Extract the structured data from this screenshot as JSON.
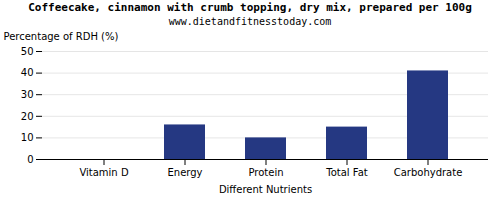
{
  "chart_data": {
    "type": "bar",
    "title": "Coffeecake, cinnamon with crumb topping, dry mix, prepared per 100g",
    "subtitle": "www.dietandfitnesstoday.com",
    "categories": [
      "Vitamin D",
      "Energy",
      "Protein",
      "Total Fat",
      "Carbohydrate"
    ],
    "values": [
      0,
      16,
      10,
      15,
      41
    ],
    "color": "#253882",
    "xlabel": "Different Nutrients",
    "ylabel": "Percentage of RDH (%)",
    "ylim": [
      0,
      50
    ],
    "yticks": [
      0,
      10,
      20,
      30,
      40,
      50
    ],
    "grid": true
  }
}
